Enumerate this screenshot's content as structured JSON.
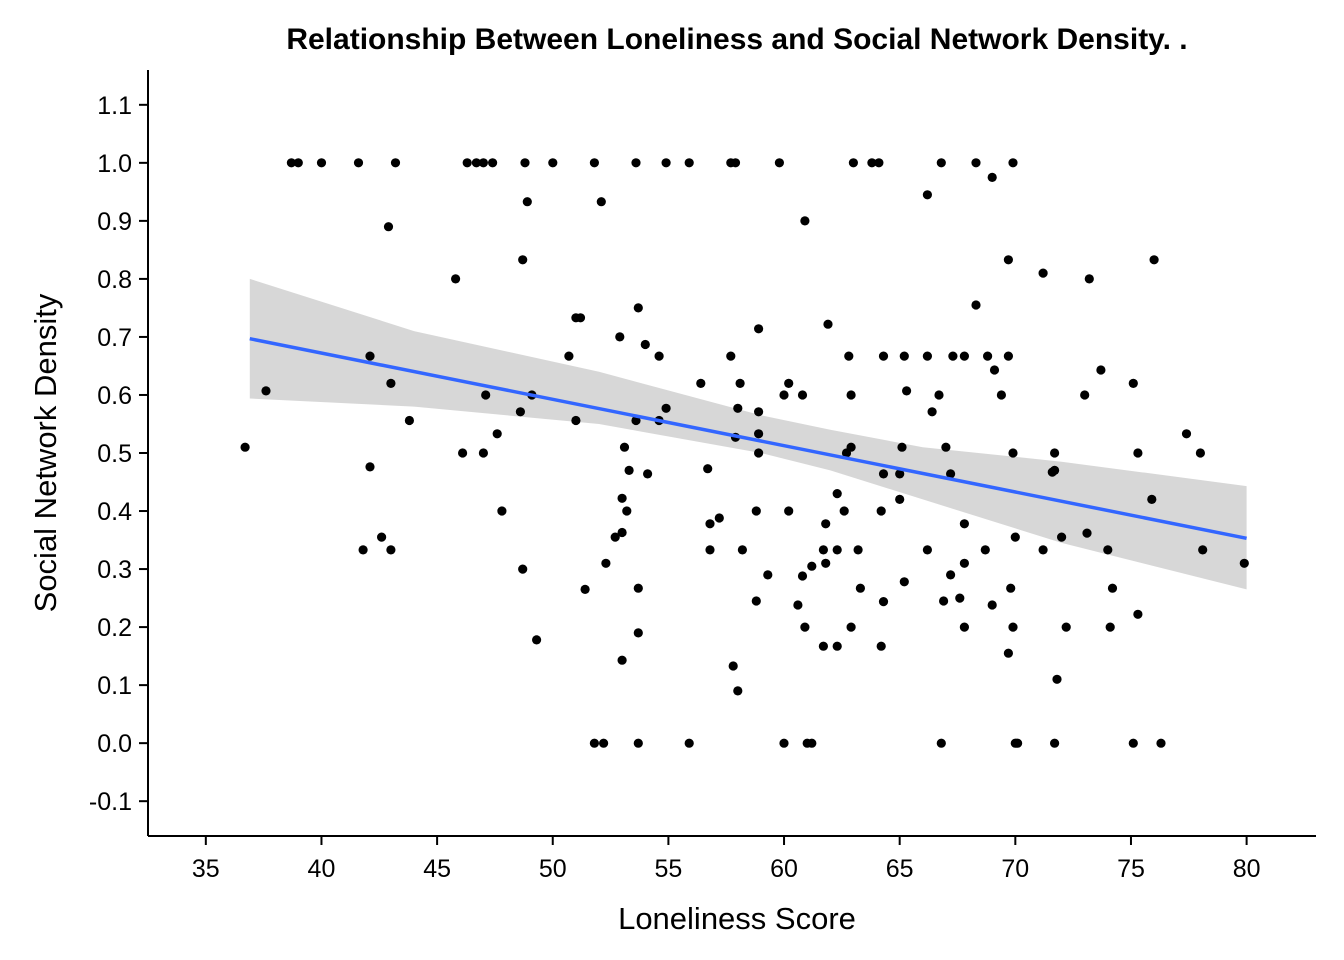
{
  "chart_data": {
    "type": "scatter",
    "title": "Relationship Between Loneliness and Social Network Density. .",
    "xlabel": "Loneliness Score",
    "ylabel": "Social Network Density",
    "xlim": [
      32.5,
      83
    ],
    "ylim": [
      -0.16,
      1.16
    ],
    "x_ticks": [
      35,
      40,
      45,
      50,
      55,
      60,
      65,
      70,
      75,
      80
    ],
    "y_ticks": [
      -0.1,
      0.0,
      0.1,
      0.2,
      0.3,
      0.4,
      0.5,
      0.6,
      0.7,
      0.8,
      0.9,
      1.0,
      1.1
    ],
    "x_tick_labels": [
      "35",
      "40",
      "45",
      "50",
      "55",
      "60",
      "65",
      "70",
      "75",
      "80"
    ],
    "y_tick_labels": [
      "-0.1",
      "0.0",
      "0.1",
      "0.2",
      "0.3",
      "0.4",
      "0.5",
      "0.6",
      "0.7",
      "0.8",
      "0.9",
      "1.0",
      "1.1"
    ],
    "grid": false,
    "point_color": "#000000",
    "points": [
      [
        38.7,
        1.0
      ],
      [
        39.0,
        1.0
      ],
      [
        40.0,
        1.0
      ],
      [
        41.6,
        1.0
      ],
      [
        43.2,
        1.0
      ],
      [
        46.3,
        1.0
      ],
      [
        46.7,
        1.0
      ],
      [
        47.0,
        1.0
      ],
      [
        47.4,
        1.0
      ],
      [
        48.8,
        1.0
      ],
      [
        50.0,
        1.0
      ],
      [
        51.8,
        1.0
      ],
      [
        53.6,
        1.0
      ],
      [
        54.9,
        1.0
      ],
      [
        55.9,
        1.0
      ],
      [
        57.7,
        1.0
      ],
      [
        57.9,
        1.0
      ],
      [
        59.8,
        1.0
      ],
      [
        63.0,
        1.0
      ],
      [
        63.8,
        1.0
      ],
      [
        64.1,
        1.0
      ],
      [
        66.8,
        1.0
      ],
      [
        68.3,
        1.0
      ],
      [
        69.9,
        1.0
      ],
      [
        69.0,
        0.975
      ],
      [
        66.2,
        0.945
      ],
      [
        48.9,
        0.933
      ],
      [
        52.1,
        0.933
      ],
      [
        42.9,
        0.89
      ],
      [
        60.9,
        0.9
      ],
      [
        45.8,
        0.8
      ],
      [
        48.7,
        0.833
      ],
      [
        69.7,
        0.833
      ],
      [
        71.2,
        0.81
      ],
      [
        73.2,
        0.8
      ],
      [
        76.0,
        0.833
      ],
      [
        68.3,
        0.755
      ],
      [
        53.7,
        0.75
      ],
      [
        51.0,
        0.733
      ],
      [
        51.2,
        0.733
      ],
      [
        61.9,
        0.722
      ],
      [
        58.9,
        0.714
      ],
      [
        52.9,
        0.7
      ],
      [
        54.0,
        0.687
      ],
      [
        37.6,
        0.607
      ],
      [
        42.1,
        0.667
      ],
      [
        43.0,
        0.62
      ],
      [
        47.1,
        0.6
      ],
      [
        49.1,
        0.6
      ],
      [
        50.7,
        0.667
      ],
      [
        54.6,
        0.667
      ],
      [
        56.4,
        0.62
      ],
      [
        57.7,
        0.667
      ],
      [
        58.1,
        0.62
      ],
      [
        60.0,
        0.6
      ],
      [
        60.2,
        0.62
      ],
      [
        60.8,
        0.6
      ],
      [
        62.8,
        0.667
      ],
      [
        62.9,
        0.6
      ],
      [
        64.3,
        0.667
      ],
      [
        65.2,
        0.667
      ],
      [
        65.3,
        0.607
      ],
      [
        66.2,
        0.667
      ],
      [
        66.4,
        0.571
      ],
      [
        66.7,
        0.6
      ],
      [
        67.3,
        0.667
      ],
      [
        67.8,
        0.667
      ],
      [
        68.8,
        0.667
      ],
      [
        69.1,
        0.643
      ],
      [
        69.4,
        0.6
      ],
      [
        69.7,
        0.667
      ],
      [
        73.0,
        0.6
      ],
      [
        73.7,
        0.643
      ],
      [
        75.1,
        0.62
      ],
      [
        36.7,
        0.51
      ],
      [
        43.8,
        0.556
      ],
      [
        46.1,
        0.5
      ],
      [
        47.0,
        0.5
      ],
      [
        47.6,
        0.533
      ],
      [
        48.6,
        0.571
      ],
      [
        51.0,
        0.556
      ],
      [
        53.1,
        0.51
      ],
      [
        53.6,
        0.556
      ],
      [
        54.6,
        0.556
      ],
      [
        54.9,
        0.577
      ],
      [
        57.9,
        0.527
      ],
      [
        58.0,
        0.577
      ],
      [
        58.9,
        0.5
      ],
      [
        58.9,
        0.533
      ],
      [
        58.9,
        0.571
      ],
      [
        62.7,
        0.5
      ],
      [
        62.9,
        0.51
      ],
      [
        65.1,
        0.51
      ],
      [
        65.0,
        0.464
      ],
      [
        64.3,
        0.464
      ],
      [
        67.0,
        0.51
      ],
      [
        67.2,
        0.464
      ],
      [
        69.9,
        0.5
      ],
      [
        71.7,
        0.5
      ],
      [
        71.6,
        0.467
      ],
      [
        71.7,
        0.47
      ],
      [
        75.3,
        0.5
      ],
      [
        75.9,
        0.42
      ],
      [
        77.4,
        0.533
      ],
      [
        78.0,
        0.5
      ],
      [
        42.1,
        0.476
      ],
      [
        41.8,
        0.333
      ],
      [
        42.6,
        0.355
      ],
      [
        43.0,
        0.333
      ],
      [
        47.8,
        0.4
      ],
      [
        48.7,
        0.3
      ],
      [
        51.4,
        0.265
      ],
      [
        52.3,
        0.31
      ],
      [
        52.7,
        0.355
      ],
      [
        53.0,
        0.422
      ],
      [
        53.0,
        0.363
      ],
      [
        53.2,
        0.4
      ],
      [
        53.3,
        0.47
      ],
      [
        54.1,
        0.464
      ],
      [
        53.7,
        0.267
      ],
      [
        56.7,
        0.473
      ],
      [
        56.8,
        0.378
      ],
      [
        56.8,
        0.333
      ],
      [
        57.2,
        0.388
      ],
      [
        58.2,
        0.333
      ],
      [
        58.8,
        0.4
      ],
      [
        58.8,
        0.245
      ],
      [
        59.3,
        0.29
      ],
      [
        60.2,
        0.4
      ],
      [
        60.6,
        0.238
      ],
      [
        60.8,
        0.288
      ],
      [
        61.2,
        0.305
      ],
      [
        61.7,
        0.333
      ],
      [
        61.8,
        0.378
      ],
      [
        61.8,
        0.31
      ],
      [
        62.3,
        0.43
      ],
      [
        62.3,
        0.333
      ],
      [
        62.6,
        0.4
      ],
      [
        63.2,
        0.333
      ],
      [
        63.3,
        0.267
      ],
      [
        64.2,
        0.4
      ],
      [
        64.3,
        0.244
      ],
      [
        65.0,
        0.42
      ],
      [
        65.2,
        0.278
      ],
      [
        66.2,
        0.333
      ],
      [
        66.9,
        0.245
      ],
      [
        67.2,
        0.29
      ],
      [
        67.6,
        0.25
      ],
      [
        67.8,
        0.378
      ],
      [
        67.8,
        0.31
      ],
      [
        68.7,
        0.333
      ],
      [
        69.0,
        0.238
      ],
      [
        69.8,
        0.267
      ],
      [
        70.0,
        0.355
      ],
      [
        71.2,
        0.333
      ],
      [
        72.0,
        0.355
      ],
      [
        73.1,
        0.362
      ],
      [
        74.0,
        0.333
      ],
      [
        74.2,
        0.267
      ],
      [
        78.1,
        0.333
      ],
      [
        79.9,
        0.31
      ],
      [
        49.3,
        0.178
      ],
      [
        53.0,
        0.143
      ],
      [
        53.7,
        0.19
      ],
      [
        57.8,
        0.133
      ],
      [
        58.0,
        0.09
      ],
      [
        60.9,
        0.2
      ],
      [
        61.7,
        0.167
      ],
      [
        62.3,
        0.167
      ],
      [
        62.9,
        0.2
      ],
      [
        64.2,
        0.167
      ],
      [
        67.8,
        0.2
      ],
      [
        69.7,
        0.155
      ],
      [
        69.9,
        0.2
      ],
      [
        71.8,
        0.11
      ],
      [
        72.2,
        0.2
      ],
      [
        74.1,
        0.2
      ],
      [
        75.3,
        0.222
      ],
      [
        51.8,
        0.0
      ],
      [
        52.2,
        0.0
      ],
      [
        53.7,
        0.0
      ],
      [
        55.9,
        0.0
      ],
      [
        60.0,
        0.0
      ],
      [
        61.0,
        0.0
      ],
      [
        61.2,
        0.0
      ],
      [
        66.8,
        0.0
      ],
      [
        70.0,
        0.0
      ],
      [
        70.1,
        0.0
      ],
      [
        71.7,
        0.0
      ],
      [
        75.1,
        0.0
      ],
      [
        76.3,
        0.0
      ]
    ],
    "trend_line": {
      "color": "#3366FF",
      "x": [
        36.9,
        80.0
      ],
      "y": [
        0.697,
        0.353
      ]
    },
    "confidence_band": {
      "color": "#D3D3D3",
      "x": [
        36.9,
        44.0,
        52.0,
        59.0,
        62.0,
        66.0,
        72.0,
        80.0
      ],
      "upper": [
        0.8,
        0.71,
        0.64,
        0.565,
        0.54,
        0.51,
        0.485,
        0.443
      ],
      "lower": [
        0.594,
        0.58,
        0.55,
        0.5,
        0.47,
        0.42,
        0.345,
        0.265
      ]
    }
  }
}
